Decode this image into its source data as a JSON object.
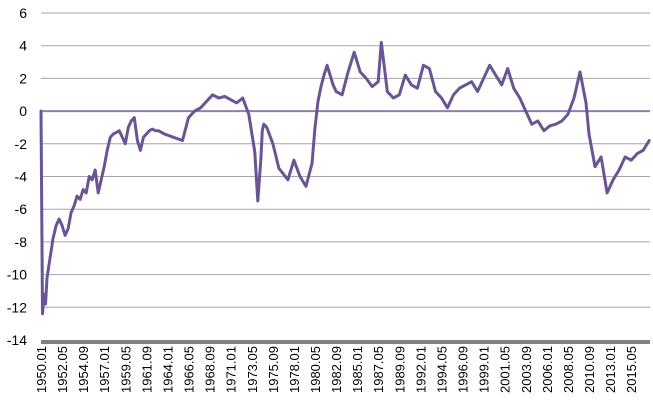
{
  "chart_data": {
    "type": "line",
    "title": "",
    "xlabel": "",
    "ylabel": "",
    "ylim": [
      -14,
      6
    ],
    "yticks": [
      "6",
      "4",
      "2",
      "0",
      "-2",
      "-4",
      "-6",
      "-8",
      "-10",
      "-12",
      "-14"
    ],
    "xlim": [
      "1950.01",
      "2017.06"
    ],
    "xticks": [
      "1950.01",
      "1952.05",
      "1954.09",
      "1957.01",
      "1959.05",
      "1961.09",
      "1964.01",
      "1966.05",
      "1968.09",
      "1971.01",
      "1973.05",
      "1975.09",
      "1978.01",
      "1980.05",
      "1982.09",
      "1985.01",
      "1987.05",
      "1989.09",
      "1992.01",
      "1994.05",
      "1996.09",
      "1999.01",
      "2001.05",
      "2003.09",
      "2006.01",
      "2008.05",
      "2010.09",
      "2013.01",
      "2015.05"
    ],
    "grid": true,
    "legend": "none",
    "colors": {
      "series": "#6a5594",
      "grid": "#a6a6a6",
      "zero_line": "#8e7fb3",
      "axis": "#808080"
    },
    "series": [
      {
        "x": [
          "1950.01",
          "1950.03",
          "1950.05",
          "1950.07",
          "1950.09",
          "1951.01",
          "1951.05",
          "1951.09",
          "1952.01",
          "1952.05",
          "1952.09",
          "1953.01",
          "1953.05",
          "1953.09",
          "1954.01",
          "1954.05",
          "1954.09",
          "1955.01",
          "1955.05",
          "1955.09",
          "1956.01",
          "1956.05",
          "1956.09",
          "1957.01",
          "1957.05",
          "1957.09",
          "1958.01",
          "1958.05",
          "1958.09",
          "1959.01",
          "1959.05",
          "1959.09",
          "1960.01",
          "1960.05",
          "1960.09",
          "1961.01",
          "1961.05",
          "1961.09",
          "1962.01",
          "1962.05",
          "1962.09",
          "1963.01",
          "1963.09",
          "1964.09",
          "1965.09",
          "1966.05",
          "1967.01",
          "1967.09",
          "1968.05",
          "1969.01",
          "1969.09",
          "1970.05",
          "1971.01",
          "1971.09",
          "1972.05",
          "1973.01",
          "1973.09",
          "1974.01",
          "1974.05",
          "1974.07",
          "1974.09",
          "1975.01",
          "1975.09",
          "1976.05",
          "1977.05",
          "1978.01",
          "1978.09",
          "1979.05",
          "1980.01",
          "1980.05",
          "1980.09",
          "1981.01",
          "1981.05",
          "1981.09",
          "1982.05",
          "1982.09",
          "1983.05",
          "1984.01",
          "1984.09",
          "1985.05",
          "1986.01",
          "1986.09",
          "1987.05",
          "1987.09",
          "1988.05",
          "1989.01",
          "1989.09",
          "1990.05",
          "1991.01",
          "1991.09",
          "1992.05",
          "1993.01",
          "1993.09",
          "1994.05",
          "1995.01",
          "1995.09",
          "1996.05",
          "1997.01",
          "1997.09",
          "1998.05",
          "1999.01",
          "1999.09",
          "2000.05",
          "2001.01",
          "2001.09",
          "2002.05",
          "2003.01",
          "2003.09",
          "2004.05",
          "2005.01",
          "2005.09",
          "2006.05",
          "2007.01",
          "2007.09",
          "2008.05",
          "2009.01",
          "2009.09",
          "2010.05",
          "2010.09",
          "2011.05",
          "2012.01",
          "2012.09",
          "2013.05",
          "2014.01",
          "2014.09",
          "2015.05",
          "2016.01",
          "2016.09",
          "2017.05"
        ],
        "values": [
          0,
          -12.4,
          -11.2,
          -11.8,
          -10.2,
          -9.0,
          -7.8,
          -7.0,
          -6.6,
          -7.0,
          -7.6,
          -7.2,
          -6.2,
          -5.8,
          -5.2,
          -5.4,
          -4.8,
          -5.0,
          -4.0,
          -4.2,
          -3.6,
          -5.0,
          -4.2,
          -3.4,
          -2.4,
          -1.6,
          -1.4,
          -1.3,
          -1.2,
          -1.6,
          -2.0,
          -1.0,
          -0.6,
          -0.4,
          -1.8,
          -2.4,
          -1.6,
          -1.4,
          -1.2,
          -1.1,
          -1.2,
          -1.2,
          -1.4,
          -1.6,
          -1.8,
          -0.4,
          0.0,
          0.2,
          0.6,
          1.0,
          0.8,
          0.9,
          0.7,
          0.5,
          0.8,
          -0.2,
          -2.5,
          -5.5,
          -3.0,
          -1.2,
          -0.8,
          -1.0,
          -2.0,
          -3.5,
          -4.2,
          -3.0,
          -4.0,
          -4.6,
          -3.2,
          -1.0,
          0.6,
          1.5,
          2.2,
          2.8,
          1.6,
          1.2,
          1.0,
          2.4,
          3.6,
          2.4,
          2.0,
          1.5,
          1.8,
          4.2,
          1.2,
          0.8,
          1.0,
          2.2,
          1.6,
          1.4,
          2.8,
          2.6,
          1.2,
          0.8,
          0.2,
          1.0,
          1.4,
          1.6,
          1.8,
          1.2,
          2.0,
          2.8,
          2.2,
          1.6,
          2.6,
          1.4,
          0.8,
          0.0,
          -0.8,
          -0.6,
          -1.2,
          -0.9,
          -0.8,
          -0.6,
          -0.2,
          0.8,
          2.4,
          0.5,
          -1.4,
          -3.4,
          -2.8,
          -5.0,
          -4.2,
          -3.6,
          -2.8,
          -3.0,
          -2.6,
          -2.4,
          -1.8
        ]
      }
    ]
  }
}
